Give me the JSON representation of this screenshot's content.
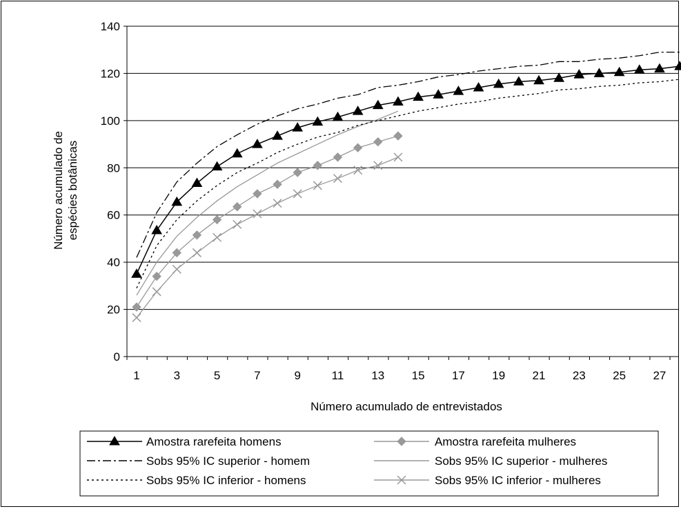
{
  "chart_data": {
    "type": "line",
    "title": "",
    "xlabel": "Número acumulado de entrevistados",
    "ylabel_lines": [
      "Número acumulado de",
      "espécies botânicas"
    ],
    "xlim": [
      1,
      28
    ],
    "ylim": [
      0,
      140
    ],
    "ytick_step": 20,
    "xtick_labels": [
      "1",
      "3",
      "5",
      "7",
      "9",
      "11",
      "13",
      "15",
      "17",
      "19",
      "21",
      "23",
      "25",
      "27"
    ],
    "grid": "horizontal",
    "legend_position": "bottom",
    "series": [
      {
        "name": "Amostra rarefeita homens",
        "color": "#000000",
        "dash": "solid",
        "marker": "triangle",
        "x": [
          1,
          2,
          3,
          4,
          5,
          6,
          7,
          8,
          9,
          10,
          11,
          12,
          13,
          14,
          15,
          16,
          17,
          18,
          19,
          20,
          21,
          22,
          23,
          24,
          25,
          26,
          27,
          28
        ],
        "values": [
          35,
          53.5,
          65.5,
          73.5,
          80.5,
          86,
          90,
          93.5,
          97,
          99.5,
          101.5,
          104,
          106.5,
          108,
          110,
          111,
          112.5,
          114,
          115.5,
          116.5,
          117,
          118,
          119.5,
          120,
          120.5,
          121.5,
          122,
          123
        ]
      },
      {
        "name": "Amostra rarefeita mulheres",
        "color": "#999999",
        "dash": "solid",
        "marker": "diamond",
        "x": [
          1,
          2,
          3,
          4,
          5,
          6,
          7,
          8,
          9,
          10,
          11,
          12,
          13,
          14
        ],
        "values": [
          21,
          34,
          44,
          51.5,
          58,
          63.5,
          69,
          73,
          78,
          81,
          84.5,
          88.5,
          91,
          93.5
        ]
      },
      {
        "name": "Sobs 95% IC superior - homem",
        "color": "#000000",
        "dash": "dashdot",
        "marker": "none",
        "x": [
          1,
          2,
          3,
          4,
          5,
          6,
          7,
          8,
          9,
          10,
          11,
          12,
          13,
          14,
          15,
          16,
          17,
          18,
          19,
          20,
          21,
          22,
          23,
          24,
          25,
          26,
          27,
          28
        ],
        "values": [
          42,
          61,
          74,
          82,
          89,
          94,
          98.5,
          102,
          105,
          107,
          109.5,
          111,
          114,
          115,
          116.5,
          118.5,
          119.5,
          121,
          122,
          123,
          123.5,
          125,
          125,
          126,
          126.5,
          127.5,
          129,
          129
        ]
      },
      {
        "name": "Sobs 95% IC superior - mulheres",
        "color": "#999999",
        "dash": "solid",
        "marker": "none",
        "x": [
          1,
          2,
          3,
          4,
          5,
          6,
          7,
          8,
          9,
          10,
          11,
          12,
          13,
          14
        ],
        "values": [
          26,
          40,
          51,
          59,
          66,
          72,
          77,
          82,
          86,
          90,
          94,
          97.5,
          100.5,
          104
        ]
      },
      {
        "name": "Sobs 95% IC inferior - homens",
        "color": "#000000",
        "dash": "dotted",
        "marker": "none",
        "x": [
          1,
          2,
          3,
          4,
          5,
          6,
          7,
          8,
          9,
          10,
          11,
          12,
          13,
          14,
          15,
          16,
          17,
          18,
          19,
          20,
          21,
          22,
          23,
          24,
          25,
          26,
          27,
          28
        ],
        "values": [
          29,
          47,
          58,
          66,
          72.5,
          78,
          82,
          86.5,
          90,
          93,
          95,
          98,
          100,
          102,
          104,
          105.5,
          107,
          108,
          109.5,
          110.5,
          111.5,
          113,
          113.5,
          114.5,
          115,
          116,
          116.5,
          117.5
        ]
      },
      {
        "name": "Sobs 95% IC inferior - mulheres",
        "color": "#999999",
        "dash": "solid",
        "marker": "x",
        "x": [
          1,
          2,
          3,
          4,
          5,
          6,
          7,
          8,
          9,
          10,
          11,
          12,
          13,
          14
        ],
        "values": [
          16.5,
          27.5,
          37,
          44,
          50.5,
          56,
          60.5,
          65,
          69,
          72.5,
          75.5,
          79,
          81,
          84.5
        ]
      }
    ]
  }
}
